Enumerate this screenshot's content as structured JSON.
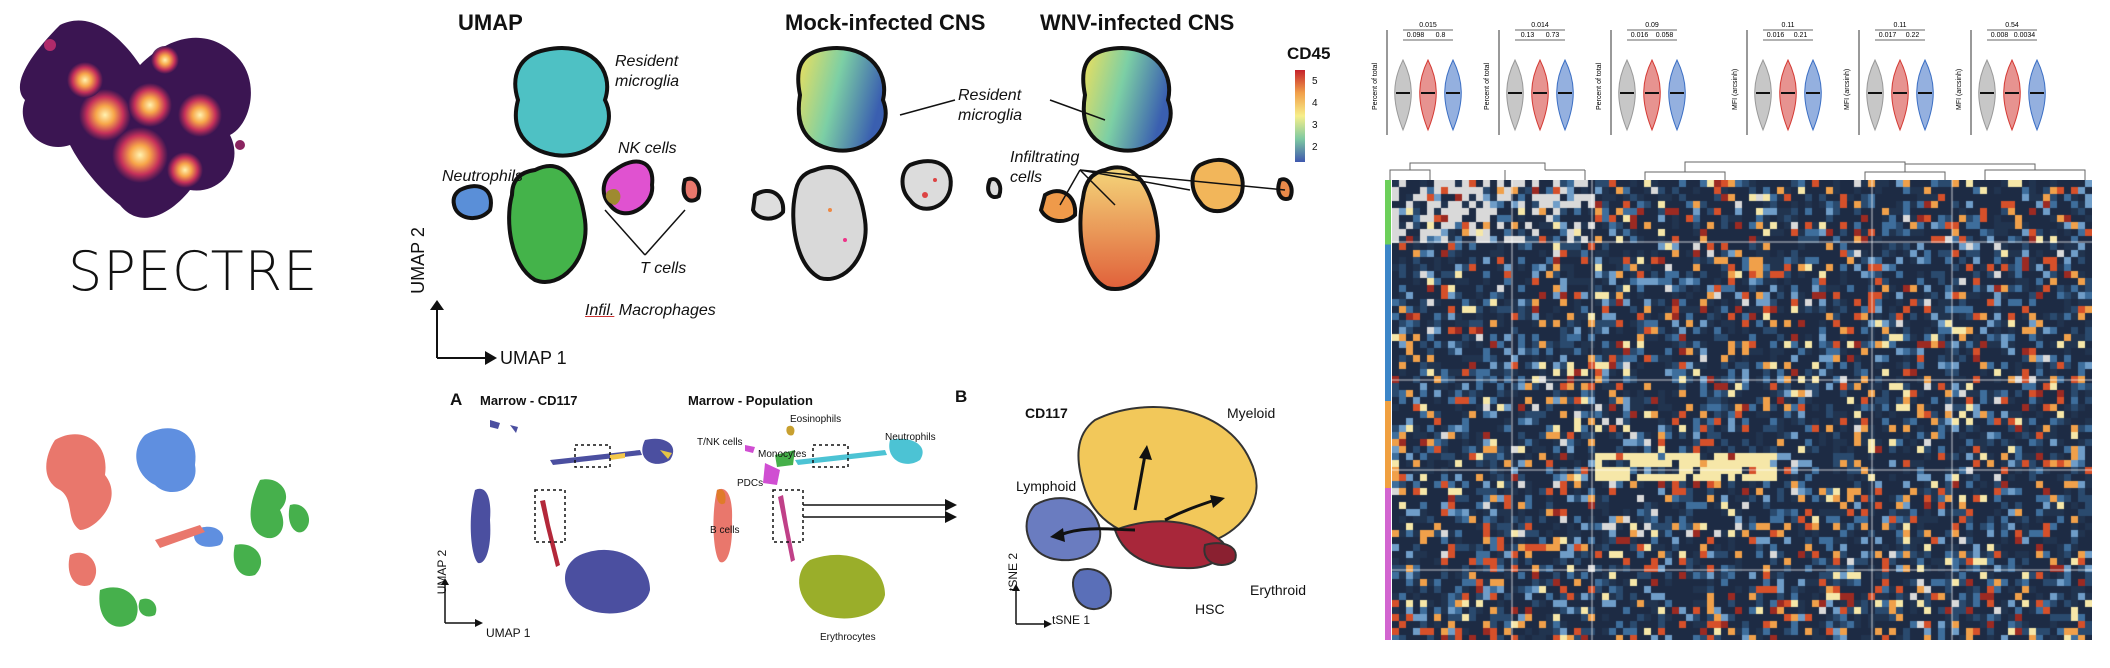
{
  "logo": {
    "title": "SPECTRE"
  },
  "umap_panel": {
    "headers": [
      "UMAP",
      "Mock-infected CNS",
      "WNV-infected CNS"
    ],
    "colorbar_title": "CD45",
    "colorbar_ticks": [
      "5",
      "4",
      "3",
      "2"
    ],
    "cluster_labels": {
      "resident": "Resident microglia",
      "nk": "NK cells",
      "neutrophils": "Neutrophils",
      "tcells": "T cells",
      "infil_prefix": "Infil.",
      "infil_suffix": " Macrophages",
      "resident_mid": "Resident microglia",
      "infiltrating": "Infiltrating cells"
    },
    "axis_y": "UMAP 2",
    "axis_x": "UMAP 1"
  },
  "marrow_panel": {
    "label_a": "A",
    "label_b": "B",
    "title_cd117": "Marrow - CD117",
    "title_population": "Marrow - Population",
    "axis_y": "UMAP 2",
    "axis_x": "UMAP 1",
    "population_labels": [
      "Eosinophils",
      "T/NK cells",
      "Monocytes",
      "Neutrophils",
      "PDCs",
      "B cells",
      "Erythrocytes"
    ],
    "tsne_title": "CD117",
    "tsne_labels": [
      "Myeloid",
      "Lymphoid",
      "Erythroid",
      "HSC"
    ],
    "tsne_axis_y": "tSNE 2",
    "tsne_axis_x": "tSNE 1"
  },
  "violin_panel": {
    "ylabels": [
      "Percent of total",
      "Percent of total",
      "Percent of total",
      "MFI (arcsinh)",
      "MFI (arcsinh)",
      "MFI (arcsinh)"
    ],
    "pvalues": [
      [
        "0.015",
        "0.098",
        "0.8"
      ],
      [
        "0.014",
        "0.13",
        "0.73"
      ],
      [
        "0.09",
        "0.016",
        "0.058"
      ],
      [
        "0.11",
        "0.016",
        "0.21"
      ],
      [
        "0.11",
        "0.017",
        "0.22"
      ],
      [
        "0.54",
        "0.008",
        "0.0034"
      ]
    ]
  },
  "colors": {
    "resident": "#4ec1c4",
    "nk": "#e052d0",
    "neutrophil": "#5a8fd8",
    "macrophage": "#44b34a",
    "tcell": "#9e8a30",
    "salmon": "#e9776c",
    "blue": "#5f8fe0",
    "green": "#46b04c",
    "marrow_purple": "#4b4fa0",
    "olive": "#9aae2a",
    "heat_dark": "#1f2d45"
  }
}
